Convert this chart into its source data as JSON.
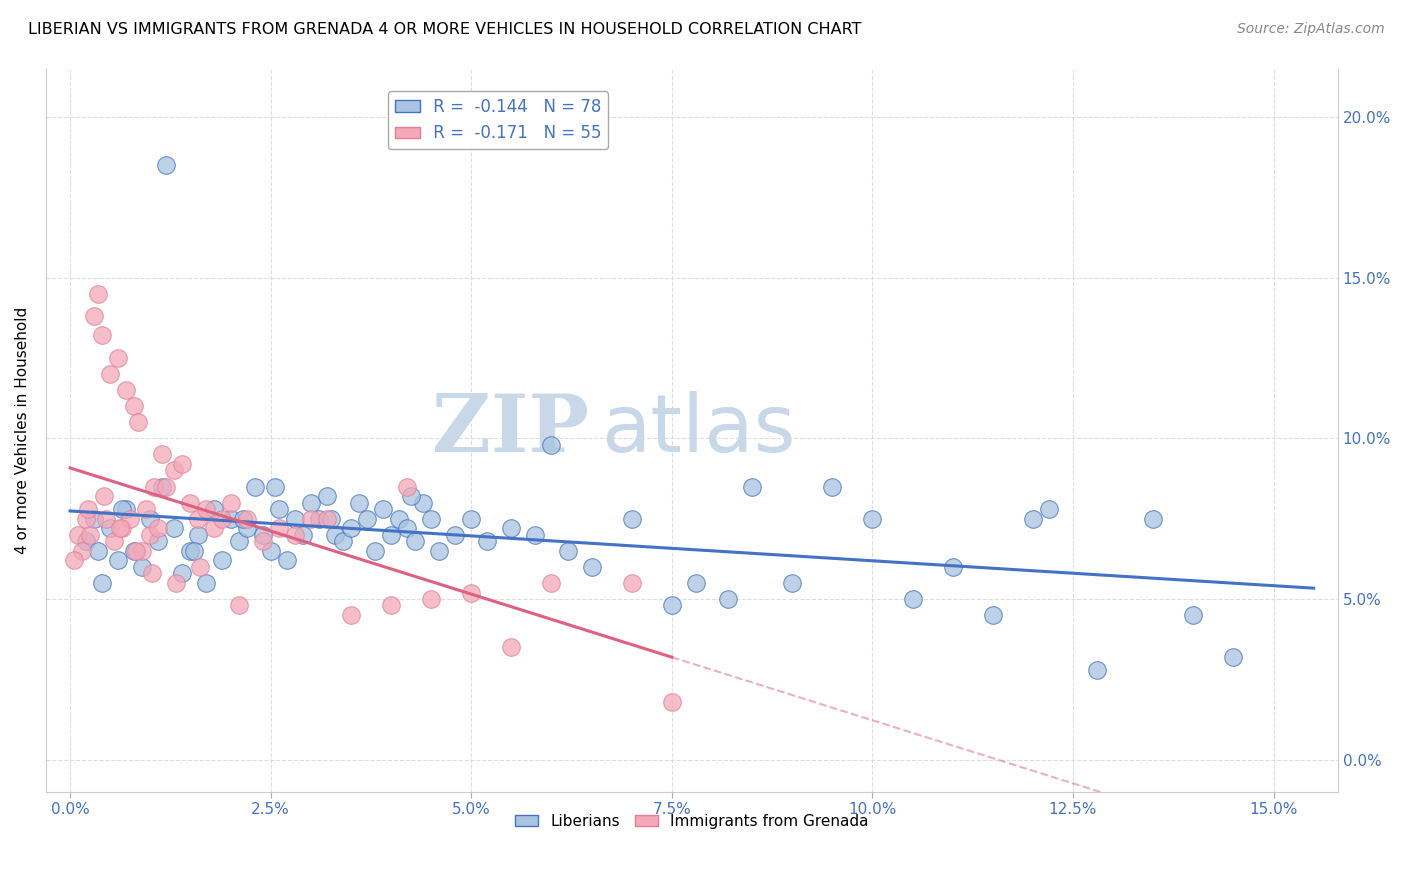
{
  "title": "LIBERIAN VS IMMIGRANTS FROM GRENADA 4 OR MORE VEHICLES IN HOUSEHOLD CORRELATION CHART",
  "source": "Source: ZipAtlas.com",
  "ylabel": "4 or more Vehicles in Household",
  "x_tick_labels": [
    "0.0%",
    "2.5%",
    "5.0%",
    "7.5%",
    "10.0%",
    "12.5%",
    "15.0%"
  ],
  "x_ticks": [
    0.0,
    2.5,
    5.0,
    7.5,
    10.0,
    12.5,
    15.0
  ],
  "y_tick_labels_right": [
    "0.0%",
    "5.0%",
    "10.0%",
    "15.0%",
    "20.0%"
  ],
  "y_ticks_right": [
    0.0,
    5.0,
    10.0,
    15.0,
    20.0
  ],
  "xlim": [
    -0.3,
    15.8
  ],
  "ylim": [
    -1.0,
    21.5
  ],
  "legend_R1": "R =  -0.144",
  "legend_N1": "N = 78",
  "legend_R2": "R =  -0.171",
  "legend_N2": "N = 55",
  "color_blue": "#a8c4e0",
  "color_pink": "#f4a8b8",
  "line_color_blue": "#4472c4",
  "line_color_pink": "#e06080",
  "watermark_zip": "ZIP",
  "watermark_atlas": "atlas",
  "watermark_color": "#c8d8e8",
  "blue_scatter_x": [
    1.2,
    0.3,
    0.8,
    0.5,
    0.2,
    0.4,
    0.6,
    0.7,
    0.9,
    1.0,
    1.1,
    1.3,
    1.4,
    1.5,
    1.6,
    1.7,
    1.8,
    1.9,
    2.0,
    2.1,
    2.2,
    2.3,
    2.4,
    2.5,
    2.6,
    2.7,
    2.8,
    2.9,
    3.0,
    3.1,
    3.2,
    3.3,
    3.4,
    3.5,
    3.6,
    3.7,
    3.8,
    3.9,
    4.0,
    4.1,
    4.2,
    4.3,
    4.4,
    4.5,
    4.6,
    4.8,
    5.0,
    5.2,
    5.5,
    5.8,
    6.0,
    6.2,
    6.5,
    7.0,
    7.5,
    7.8,
    8.2,
    8.5,
    9.0,
    9.5,
    10.0,
    10.5,
    11.0,
    11.5,
    12.0,
    12.2,
    12.8,
    13.5,
    14.0,
    14.5,
    0.35,
    0.65,
    1.15,
    1.55,
    2.15,
    2.55,
    3.25,
    4.25
  ],
  "blue_scatter_y": [
    18.5,
    7.5,
    6.5,
    7.2,
    6.8,
    5.5,
    6.2,
    7.8,
    6.0,
    7.5,
    6.8,
    7.2,
    5.8,
    6.5,
    7.0,
    5.5,
    7.8,
    6.2,
    7.5,
    6.8,
    7.2,
    8.5,
    7.0,
    6.5,
    7.8,
    6.2,
    7.5,
    7.0,
    8.0,
    7.5,
    8.2,
    7.0,
    6.8,
    7.2,
    8.0,
    7.5,
    6.5,
    7.8,
    7.0,
    7.5,
    7.2,
    6.8,
    8.0,
    7.5,
    6.5,
    7.0,
    7.5,
    6.8,
    7.2,
    7.0,
    9.8,
    6.5,
    6.0,
    7.5,
    4.8,
    5.5,
    5.0,
    8.5,
    5.5,
    8.5,
    7.5,
    5.0,
    6.0,
    4.5,
    7.5,
    7.8,
    2.8,
    7.5,
    4.5,
    3.2,
    6.5,
    7.8,
    8.5,
    6.5,
    7.5,
    8.5,
    7.5,
    8.2
  ],
  "pink_scatter_x": [
    0.1,
    0.15,
    0.2,
    0.25,
    0.3,
    0.35,
    0.4,
    0.45,
    0.5,
    0.55,
    0.6,
    0.65,
    0.7,
    0.75,
    0.8,
    0.85,
    0.9,
    0.95,
    1.0,
    1.05,
    1.1,
    1.15,
    1.2,
    1.3,
    1.4,
    1.5,
    1.6,
    1.7,
    1.8,
    1.9,
    2.0,
    2.2,
    2.4,
    2.6,
    2.8,
    3.0,
    3.5,
    4.0,
    4.2,
    4.5,
    5.0,
    5.5,
    6.0,
    7.0,
    7.5,
    0.05,
    0.22,
    0.42,
    0.62,
    0.82,
    1.02,
    1.32,
    1.62,
    2.1,
    3.2
  ],
  "pink_scatter_y": [
    7.0,
    6.5,
    7.5,
    7.0,
    13.8,
    14.5,
    13.2,
    7.5,
    12.0,
    6.8,
    12.5,
    7.2,
    11.5,
    7.5,
    11.0,
    10.5,
    6.5,
    7.8,
    7.0,
    8.5,
    7.2,
    9.5,
    8.5,
    9.0,
    9.2,
    8.0,
    7.5,
    7.8,
    7.2,
    7.5,
    8.0,
    7.5,
    6.8,
    7.2,
    7.0,
    7.5,
    4.5,
    4.8,
    8.5,
    5.0,
    5.2,
    3.5,
    5.5,
    5.5,
    1.8,
    6.2,
    7.8,
    8.2,
    7.2,
    6.5,
    5.8,
    5.5,
    6.0,
    4.8,
    7.5
  ]
}
